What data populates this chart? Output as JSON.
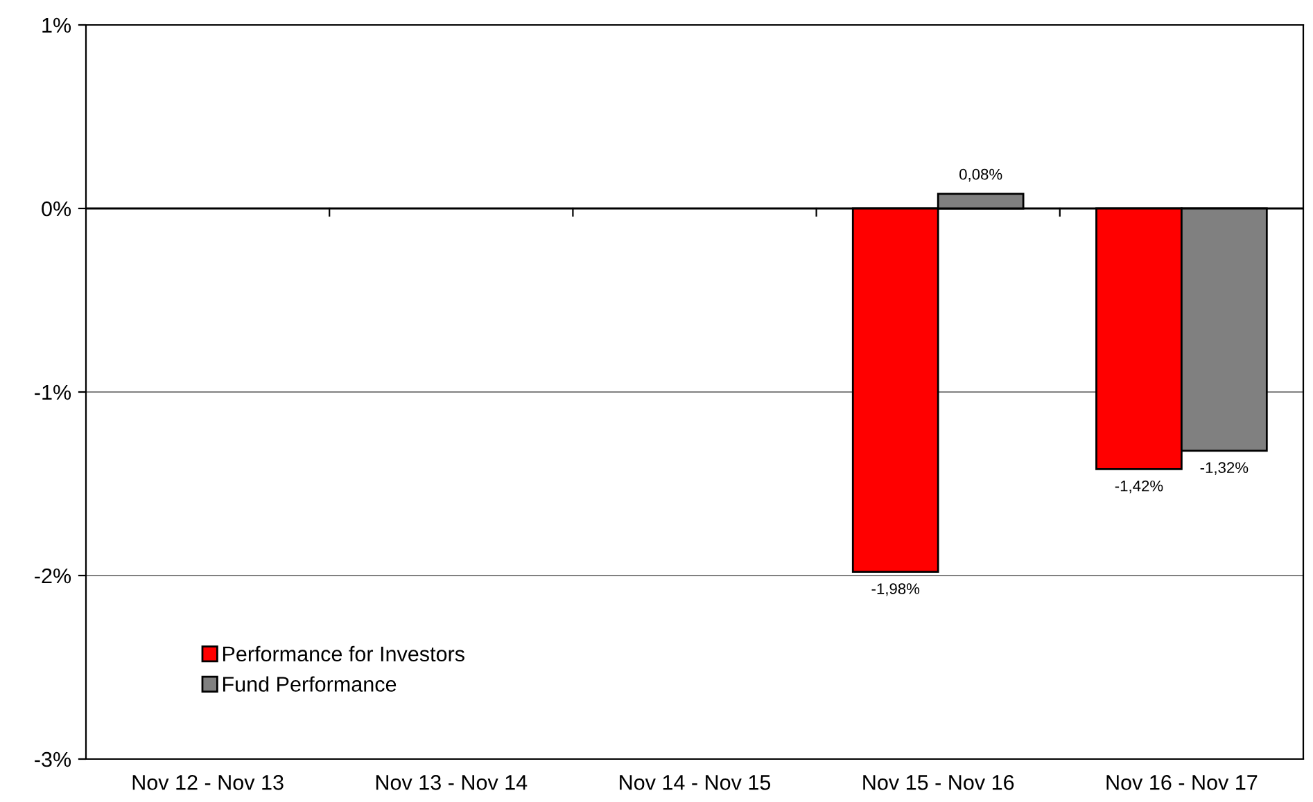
{
  "chart_data": {
    "type": "bar",
    "categories": [
      "Nov 12 - Nov 13",
      "Nov 13 - Nov 14",
      "Nov 14 - Nov 15",
      "Nov 15 - Nov 16",
      "Nov 16 - Nov 17"
    ],
    "series": [
      {
        "name": "Performance for Investors",
        "color": "#ff0000",
        "values": [
          null,
          null,
          null,
          -1.98,
          -1.42
        ],
        "value_labels": [
          null,
          null,
          null,
          "-1,98%",
          "-1,42%"
        ]
      },
      {
        "name": "Fund Performance",
        "color": "#808080",
        "values": [
          null,
          null,
          null,
          0.08,
          -1.32
        ],
        "value_labels": [
          null,
          null,
          null,
          "0,08%",
          "-1,32%"
        ]
      }
    ],
    "ylim": [
      -3,
      1
    ],
    "yticks": [
      {
        "value": -3,
        "label": "-3%"
      },
      {
        "value": -2,
        "label": "-2%"
      },
      {
        "value": -1,
        "label": "-1%"
      },
      {
        "value": 0,
        "label": "0%"
      },
      {
        "value": 1,
        "label": "1%"
      }
    ],
    "grid": "y",
    "legend": "bottom left"
  }
}
